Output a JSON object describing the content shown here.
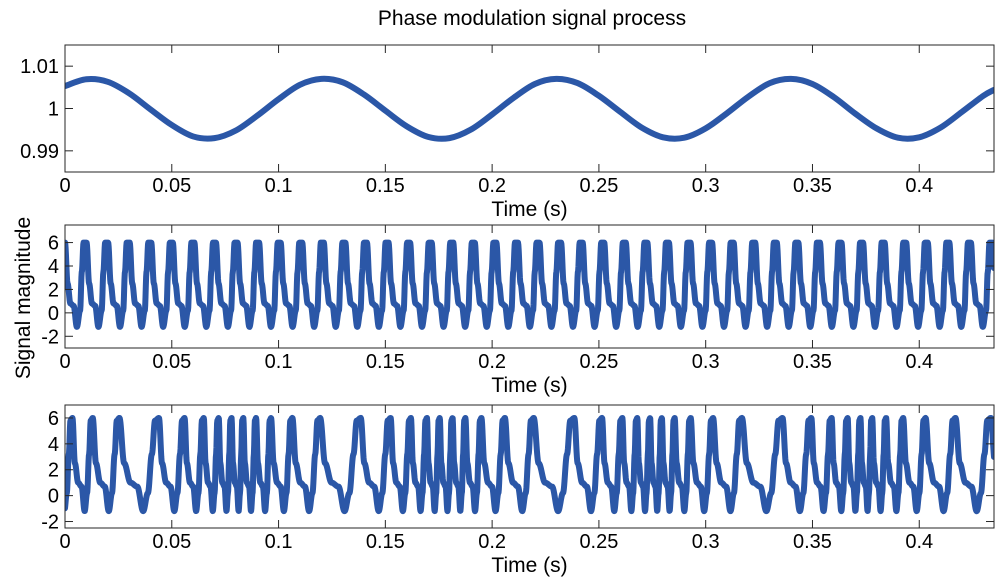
{
  "chart_data": {
    "title": "Phase modulation signal process",
    "ylabel": "Signal magnitude",
    "line_color": "#2b57a7",
    "panels": [
      {
        "type": "line",
        "xlabel": "Time (s)",
        "xlim": [
          0,
          0.435
        ],
        "ylim": [
          0.985,
          1.015
        ],
        "xticks": [
          0,
          0.05,
          0.1,
          0.15,
          0.2,
          0.25,
          0.3,
          0.35,
          0.4
        ],
        "xtick_labels": [
          "0",
          "0.05",
          "0.1",
          "0.15",
          "0.2",
          "0.25",
          "0.3",
          "0.35",
          "0.4"
        ],
        "yticks": [
          0.99,
          1,
          1.01
        ],
        "ytick_labels": [
          "0.99",
          "1",
          "1.01"
        ],
        "series": [
          {
            "x": [
              0,
              0.01,
              0.02,
              0.03,
              0.04,
              0.05,
              0.06,
              0.07,
              0.08,
              0.09,
              0.1,
              0.11,
              0.12,
              0.13,
              0.14,
              0.15,
              0.16,
              0.17,
              0.18,
              0.19,
              0.2,
              0.21,
              0.22,
              0.23,
              0.24,
              0.25,
              0.26,
              0.27,
              0.28,
              0.29,
              0.3,
              0.31,
              0.32,
              0.33,
              0.34,
              0.35,
              0.36,
              0.37,
              0.38,
              0.39,
              0.4,
              0.41,
              0.42,
              0.43,
              0.435
            ],
            "values": [
              1.0053,
              1.0069,
              1.0063,
              1.0036,
              0.9998,
              0.9961,
              0.9934,
              0.993,
              0.9948,
              0.9983,
              1.0022,
              1.0056,
              1.007,
              1.0062,
              1.0033,
              0.9995,
              0.9958,
              0.9933,
              0.993,
              0.995,
              0.9986,
              1.0025,
              1.0058,
              1.007,
              1.006,
              1.003,
              0.9992,
              0.9955,
              0.9932,
              0.9931,
              0.9953,
              0.9989,
              1.0028,
              1.006,
              1.007,
              1.0058,
              1.0027,
              0.9988,
              0.9953,
              0.9931,
              0.9932,
              0.9955,
              0.9992,
              1.003,
              1.0044
            ]
          }
        ]
      },
      {
        "type": "line",
        "xlabel": "Time (s)",
        "xlim": [
          0,
          0.435
        ],
        "ylim": [
          -3,
          7.5
        ],
        "xticks": [
          0,
          0.05,
          0.1,
          0.15,
          0.2,
          0.25,
          0.3,
          0.35,
          0.4
        ],
        "xtick_labels": [
          "0",
          "0.05",
          "0.1",
          "0.15",
          "0.2",
          "0.25",
          "0.3",
          "0.35",
          "0.4"
        ],
        "yticks": [
          -2,
          0,
          2,
          4,
          6
        ],
        "ytick_labels": [
          "-2",
          "0",
          "2",
          "4",
          "6"
        ],
        "series": [
          {
            "period": 0.0101,
            "cycle_phase": [
              0,
              0.12,
              0.25,
              0.4,
              0.55,
              0.7,
              0.78,
              0.86,
              1
            ],
            "cycle_values": [
              6,
              2.5,
              0.8,
              0.6,
              -1.2,
              0.2,
              3.5,
              6,
              6
            ]
          }
        ]
      },
      {
        "type": "line",
        "xlabel": "Time (s)",
        "xlim": [
          0,
          0.435
        ],
        "ylim": [
          -2.5,
          7
        ],
        "xticks": [
          0,
          0.05,
          0.1,
          0.15,
          0.2,
          0.25,
          0.3,
          0.35,
          0.4
        ],
        "xtick_labels": [
          "0",
          "0.05",
          "0.1",
          "0.15",
          "0.2",
          "0.25",
          "0.3",
          "0.35",
          "0.4"
        ],
        "yticks": [
          -2,
          0,
          2,
          4,
          6
        ],
        "ytick_labels": [
          "-2",
          "0",
          "2",
          "4",
          "6"
        ],
        "series": [
          {
            "peak_times": [
              0.0035,
              0.013,
              0.0255,
              0.044,
              0.056,
              0.065,
              0.072,
              0.078,
              0.0835,
              0.0895,
              0.0965,
              0.1065,
              0.1195,
              0.1385,
              0.1525,
              0.162,
              0.1695,
              0.1755,
              0.1815,
              0.1875,
              0.195,
              0.206,
              0.2195,
              0.2385,
              0.2515,
              0.261,
              0.268,
              0.274,
              0.2795,
              0.2855,
              0.293,
              0.3035,
              0.317,
              0.336,
              0.3495,
              0.359,
              0.3665,
              0.3725,
              0.378,
              0.3845,
              0.3925,
              0.403,
              0.417,
              0.4335
            ],
            "peak_value": 6,
            "trough_value": -1.2,
            "shoulder_value": 0.7
          }
        ]
      }
    ]
  }
}
